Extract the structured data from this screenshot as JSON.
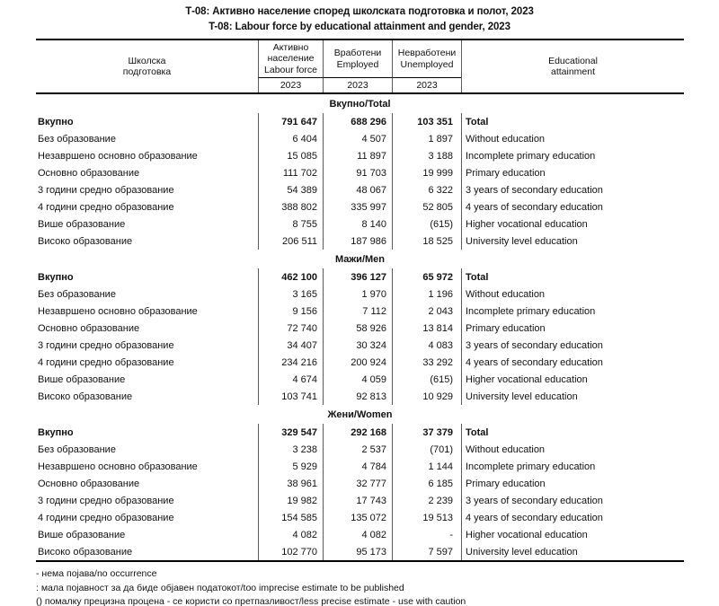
{
  "titles": {
    "mk": "Т-08: Активно население според школската подготовка и полот, 2023",
    "en": "T-08: Labour force by educational attainment and gender, 2023"
  },
  "table_header": {
    "school_prep": [
      "Школска",
      "подготовка"
    ],
    "labour_force": [
      "Активно",
      "население",
      "Labour force"
    ],
    "employed": [
      "Вработени",
      "Employed"
    ],
    "unemployed": [
      "Невработени",
      "Unemployed"
    ],
    "educational": [
      "Educational",
      "attainment"
    ],
    "year": "2023"
  },
  "sections": [
    {
      "title": "Вкупно/Total",
      "rows": [
        {
          "mk": "Вкупно",
          "labour": "791 647",
          "employed": "688 296",
          "unemployed": "103 351",
          "en": "Total",
          "bold": true
        },
        {
          "mk": "Без образование",
          "labour": "6 404",
          "employed": "4 507",
          "unemployed": "1 897",
          "en": "Without education",
          "bold": false
        },
        {
          "mk": "Незавршено основно образование",
          "labour": "15 085",
          "employed": "11 897",
          "unemployed": "3 188",
          "en": "Incomplete primary education",
          "bold": false
        },
        {
          "mk": "Основно образование",
          "labour": "111 702",
          "employed": "91 703",
          "unemployed": "19 999",
          "en": "Primary education",
          "bold": false
        },
        {
          "mk": "3 години средно образование",
          "labour": "54 389",
          "employed": "48 067",
          "unemployed": "6 322",
          "en": "3 years of secondary education",
          "bold": false
        },
        {
          "mk": "4 години средно образование",
          "labour": "388 802",
          "employed": "335 997",
          "unemployed": "52 805",
          "en": "4 years of secondary education",
          "bold": false
        },
        {
          "mk": "Више образование",
          "labour": "8 755",
          "employed": "8 140",
          "unemployed": "(615)",
          "en": "Higher vocational education",
          "bold": false
        },
        {
          "mk": "Високо образование",
          "labour": "206 511",
          "employed": "187 986",
          "unemployed": "18 525",
          "en": "University level education",
          "bold": false
        }
      ]
    },
    {
      "title": "Мажи/Men",
      "rows": [
        {
          "mk": "Вкупно",
          "labour": "462 100",
          "employed": "396 127",
          "unemployed": "65 972",
          "en": "Total",
          "bold": true
        },
        {
          "mk": "Без образование",
          "labour": "3 165",
          "employed": "1 970",
          "unemployed": "1 196",
          "en": "Without education",
          "bold": false
        },
        {
          "mk": "Незавршено основно образование",
          "labour": "9 156",
          "employed": "7 112",
          "unemployed": "2 043",
          "en": "Incomplete primary education",
          "bold": false
        },
        {
          "mk": "Основно образование",
          "labour": "72 740",
          "employed": "58 926",
          "unemployed": "13 814",
          "en": "Primary education",
          "bold": false
        },
        {
          "mk": "3 години средно образование",
          "labour": "34 407",
          "employed": "30 324",
          "unemployed": "4 083",
          "en": "3 years of secondary education",
          "bold": false
        },
        {
          "mk": "4 години средно образование",
          "labour": "234 216",
          "employed": "200 924",
          "unemployed": "33 292",
          "en": "4 years of secondary education",
          "bold": false
        },
        {
          "mk": "Више образование",
          "labour": "4 674",
          "employed": "4 059",
          "unemployed": "(615)",
          "en": "Higher vocational education",
          "bold": false
        },
        {
          "mk": "Високо образование",
          "labour": "103 741",
          "employed": "92 813",
          "unemployed": "10 929",
          "en": "University level education",
          "bold": false
        }
      ]
    },
    {
      "title": "Жени/Women",
      "rows": [
        {
          "mk": "Вкупно",
          "labour": "329 547",
          "employed": "292 168",
          "unemployed": "37 379",
          "en": "Total",
          "bold": true
        },
        {
          "mk": "Без образование",
          "labour": "3 238",
          "employed": "2 537",
          "unemployed": "(701)",
          "en": "Without education",
          "bold": false
        },
        {
          "mk": "Незавршено основно образование",
          "labour": "5 929",
          "employed": "4 784",
          "unemployed": "1 144",
          "en": "Incomplete primary education",
          "bold": false
        },
        {
          "mk": "Основно образование",
          "labour": "38 961",
          "employed": "32 777",
          "unemployed": "6 185",
          "en": "Primary education",
          "bold": false
        },
        {
          "mk": "3 години средно образование",
          "labour": "19 982",
          "employed": "17 743",
          "unemployed": "2 239",
          "en": "3 years of secondary education",
          "bold": false
        },
        {
          "mk": "4 години средно образование",
          "labour": "154 585",
          "employed": "135 072",
          "unemployed": "19 513",
          "en": "4 years of secondary education",
          "bold": false
        },
        {
          "mk": "Више образование",
          "labour": "4 082",
          "employed": "4 082",
          "unemployed": "-",
          "en": "Higher vocational education",
          "bold": false
        },
        {
          "mk": "Високо образование",
          "labour": "102 770",
          "employed": "95 173",
          "unemployed": "7 597",
          "en": "University level education",
          "bold": false
        }
      ]
    }
  ],
  "footnotes": [
    "- нема појава/no occurrence",
    ": мала појавност за да биде објавен податокот/too imprecise estimate to be published",
    "() помалку прецизна процена - се користи со претпазливост/less precise estimate - use with caution"
  ],
  "colors": {
    "background": "#ffffff",
    "text": "#111111",
    "major_rule": "#000000",
    "grid_line": "#5a5a5c"
  }
}
